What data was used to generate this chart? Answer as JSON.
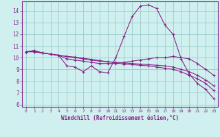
{
  "xlabel": "Windchill (Refroidissement éolien,°C)",
  "background_color": "#cff0ee",
  "grid_color": "#99cccc",
  "line_color": "#882288",
  "xlim": [
    -0.5,
    23.5
  ],
  "ylim": [
    5.8,
    14.8
  ],
  "yticks": [
    6,
    7,
    8,
    9,
    10,
    11,
    12,
    13,
    14
  ],
  "xticks": [
    0,
    1,
    2,
    3,
    4,
    5,
    6,
    7,
    8,
    9,
    10,
    11,
    12,
    13,
    14,
    15,
    16,
    17,
    18,
    19,
    20,
    21,
    22,
    23
  ],
  "series": [
    [
      10.5,
      10.6,
      10.4,
      10.3,
      10.2,
      9.3,
      9.2,
      8.8,
      9.3,
      8.8,
      8.7,
      10.0,
      11.8,
      13.5,
      14.4,
      14.5,
      14.2,
      12.8,
      12.0,
      9.9,
      8.6,
      7.8,
      7.3,
      6.5
    ],
    [
      10.5,
      10.6,
      10.4,
      10.3,
      10.2,
      9.9,
      9.8,
      9.7,
      9.6,
      9.5,
      9.5,
      9.5,
      9.6,
      9.7,
      9.8,
      9.9,
      10.0,
      10.0,
      10.1,
      10.0,
      9.9,
      9.5,
      9.0,
      8.5
    ],
    [
      10.5,
      10.5,
      10.4,
      10.3,
      10.2,
      10.1,
      10.0,
      9.9,
      9.8,
      9.7,
      9.65,
      9.6,
      9.55,
      9.5,
      9.45,
      9.4,
      9.35,
      9.3,
      9.2,
      9.0,
      8.8,
      8.5,
      8.1,
      7.6
    ],
    [
      10.5,
      10.5,
      10.4,
      10.3,
      10.2,
      10.1,
      10.05,
      9.95,
      9.85,
      9.75,
      9.65,
      9.55,
      9.45,
      9.4,
      9.35,
      9.3,
      9.2,
      9.1,
      9.0,
      8.8,
      8.5,
      8.2,
      7.8,
      7.2
    ]
  ]
}
